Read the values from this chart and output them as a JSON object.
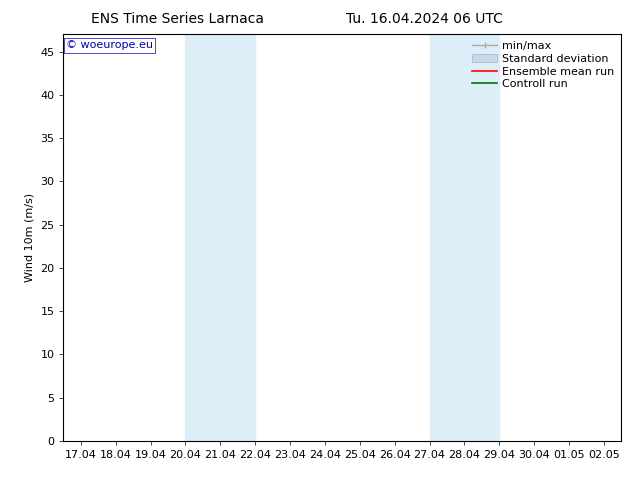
{
  "title_left": "ENS Time Series Larnaca",
  "title_right": "Tu. 16.04.2024 06 UTC",
  "ylabel": "Wind 10m (m/s)",
  "watermark": "© woeurope.eu",
  "background_color": "#ffffff",
  "plot_bg_color": "#ffffff",
  "ylim": [
    0,
    47
  ],
  "yticks": [
    0,
    5,
    10,
    15,
    20,
    25,
    30,
    35,
    40,
    45
  ],
  "xtick_labels": [
    "17.04",
    "18.04",
    "19.04",
    "20.04",
    "21.04",
    "22.04",
    "23.04",
    "24.04",
    "25.04",
    "26.04",
    "27.04",
    "28.04",
    "29.04",
    "30.04",
    "01.05",
    "02.05"
  ],
  "xtick_positions": [
    0,
    1,
    2,
    3,
    4,
    5,
    6,
    7,
    8,
    9,
    10,
    11,
    12,
    13,
    14,
    15
  ],
  "shaded_regions": [
    {
      "x_start": 3,
      "x_end": 5,
      "color": "#ddeef8"
    },
    {
      "x_start": 10,
      "x_end": 12,
      "color": "#ddeef8"
    }
  ],
  "legend_minmax_color": "#aaaaaa",
  "legend_std_facecolor": "#c8daea",
  "legend_std_edgecolor": "#a0b8cc",
  "legend_ens_color": "#ff0000",
  "legend_ctrl_color": "#007700",
  "font_size": 8,
  "title_font_size": 10,
  "watermark_color": "#0000cc"
}
